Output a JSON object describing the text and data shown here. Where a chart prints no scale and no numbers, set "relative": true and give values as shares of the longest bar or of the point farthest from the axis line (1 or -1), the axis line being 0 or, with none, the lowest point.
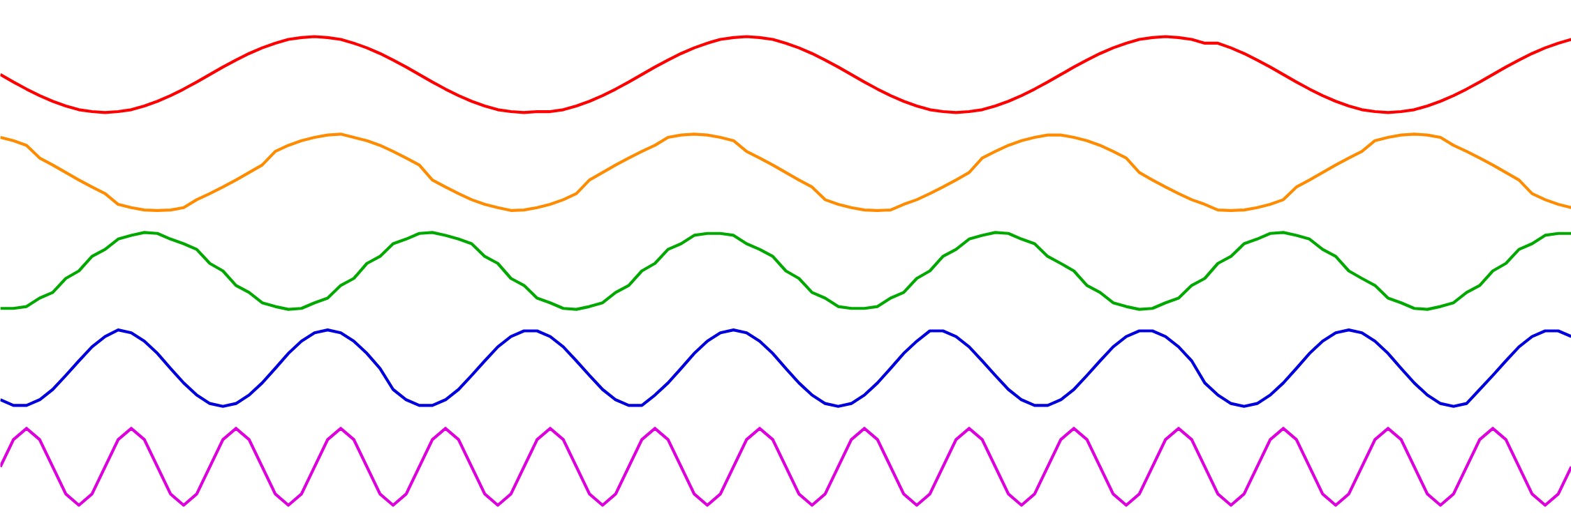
{
  "chart_data": {
    "type": "line",
    "relative": true,
    "tick_labels": false,
    "categories": [
      null,
      null,
      null,
      null,
      null,
      null,
      null,
      null,
      null,
      null,
      null,
      null,
      null,
      null,
      null,
      null,
      null,
      null,
      null,
      null,
      null,
      null,
      null,
      null,
      null,
      null,
      null,
      null,
      null,
      null,
      null,
      null,
      null,
      null,
      null,
      null,
      null,
      null,
      null,
      null,
      null,
      null,
      null,
      null,
      null,
      null,
      null,
      null,
      null,
      null,
      null,
      null,
      null,
      null,
      null,
      null,
      null,
      null,
      null,
      null,
      null,
      null,
      null,
      null,
      null,
      null,
      null,
      null,
      null,
      null,
      null,
      null,
      null,
      null,
      null,
      null,
      null,
      null,
      null,
      null,
      null,
      null,
      null,
      null,
      null,
      null,
      null,
      null,
      null,
      null,
      null,
      null,
      null,
      null,
      null,
      null,
      null,
      null,
      null,
      null,
      null,
      null,
      null,
      null,
      null,
      null,
      null,
      null,
      null,
      null,
      null,
      null,
      null,
      null,
      null,
      null,
      null,
      null,
      null,
      null,
      null
    ],
    "series": [
      {
        "color": "#ff0000",
        "values": [
          0.919,
          0.903,
          0.888,
          0.874,
          0.862,
          0.852,
          0.844,
          0.84,
          0.838,
          0.84,
          0.844,
          0.852,
          0.862,
          0.874,
          0.888,
          0.903,
          0.919,
          0.935,
          0.95,
          0.964,
          0.976,
          0.986,
          0.994,
          0.998,
          1.0,
          0.998,
          0.994,
          0.986,
          0.976,
          0.964,
          0.95,
          0.935,
          0.919,
          0.903,
          0.888,
          0.874,
          0.862,
          0.852,
          0.844,
          0.84,
          0.838,
          0.84,
          0.84,
          0.844,
          0.852,
          0.862,
          0.874,
          0.888,
          0.903,
          0.919,
          0.935,
          0.95,
          0.964,
          0.976,
          0.986,
          0.994,
          0.998,
          1.0,
          0.998,
          0.994,
          0.986,
          0.976,
          0.964,
          0.95,
          0.935,
          0.919,
          0.903,
          0.888,
          0.874,
          0.862,
          0.852,
          0.844,
          0.84,
          0.838,
          0.84,
          0.844,
          0.852,
          0.862,
          0.874,
          0.888,
          0.903,
          0.919,
          0.935,
          0.95,
          0.964,
          0.976,
          0.986,
          0.994,
          0.998,
          1.0,
          0.998,
          0.994,
          0.986,
          0.986,
          0.976,
          0.964,
          0.95,
          0.935,
          0.919,
          0.903,
          0.888,
          0.874,
          0.862,
          0.852,
          0.844,
          0.84,
          0.838,
          0.84,
          0.844,
          0.852,
          0.862,
          0.874,
          0.888,
          0.903,
          0.919,
          0.935,
          0.95,
          0.964,
          0.976,
          0.986,
          0.994
        ]
      },
      {
        "color": "#ff8c00",
        "values": [
          0.785,
          0.778,
          0.768,
          0.741,
          0.726,
          0.71,
          0.694,
          0.679,
          0.665,
          0.642,
          0.635,
          0.63,
          0.629,
          0.63,
          0.635,
          0.652,
          0.665,
          0.679,
          0.694,
          0.71,
          0.726,
          0.755,
          0.768,
          0.778,
          0.785,
          0.79,
          0.792,
          0.785,
          0.778,
          0.768,
          0.755,
          0.741,
          0.726,
          0.694,
          0.679,
          0.665,
          0.652,
          0.642,
          0.635,
          0.629,
          0.63,
          0.635,
          0.642,
          0.652,
          0.665,
          0.694,
          0.71,
          0.726,
          0.741,
          0.755,
          0.768,
          0.785,
          0.79,
          0.792,
          0.79,
          0.785,
          0.778,
          0.755,
          0.741,
          0.726,
          0.71,
          0.694,
          0.679,
          0.652,
          0.642,
          0.635,
          0.63,
          0.629,
          0.63,
          0.642,
          0.652,
          0.665,
          0.679,
          0.694,
          0.71,
          0.741,
          0.755,
          0.768,
          0.778,
          0.785,
          0.79,
          0.79,
          0.785,
          0.778,
          0.768,
          0.755,
          0.741,
          0.71,
          0.694,
          0.679,
          0.665,
          0.652,
          0.642,
          0.63,
          0.629,
          0.63,
          0.635,
          0.642,
          0.652,
          0.679,
          0.694,
          0.71,
          0.726,
          0.741,
          0.755,
          0.778,
          0.785,
          0.79,
          0.792,
          0.79,
          0.785,
          0.768,
          0.755,
          0.741,
          0.726,
          0.71,
          0.694,
          0.665,
          0.652,
          0.642,
          0.635
        ]
      },
      {
        "color": "#00a800",
        "values": [
          0.42,
          0.42,
          0.424,
          0.442,
          0.454,
          0.484,
          0.5,
          0.531,
          0.546,
          0.568,
          0.576,
          0.582,
          0.58,
          0.568,
          0.558,
          0.546,
          0.516,
          0.5,
          0.469,
          0.454,
          0.432,
          0.424,
          0.418,
          0.42,
          0.432,
          0.442,
          0.469,
          0.484,
          0.516,
          0.531,
          0.558,
          0.568,
          0.58,
          0.582,
          0.576,
          0.568,
          0.558,
          0.531,
          0.516,
          0.484,
          0.469,
          0.442,
          0.432,
          0.42,
          0.418,
          0.424,
          0.432,
          0.454,
          0.469,
          0.5,
          0.516,
          0.546,
          0.558,
          0.576,
          0.58,
          0.58,
          0.576,
          0.558,
          0.546,
          0.531,
          0.5,
          0.484,
          0.454,
          0.442,
          0.424,
          0.42,
          0.42,
          0.424,
          0.442,
          0.454,
          0.484,
          0.5,
          0.531,
          0.546,
          0.568,
          0.576,
          0.582,
          0.58,
          0.568,
          0.558,
          0.531,
          0.516,
          0.5,
          0.469,
          0.454,
          0.432,
          0.424,
          0.418,
          0.42,
          0.432,
          0.442,
          0.469,
          0.484,
          0.516,
          0.531,
          0.558,
          0.568,
          0.58,
          0.582,
          0.576,
          0.568,
          0.546,
          0.531,
          0.5,
          0.484,
          0.469,
          0.442,
          0.432,
          0.42,
          0.418,
          0.424,
          0.432,
          0.454,
          0.469,
          0.5,
          0.516,
          0.546,
          0.558,
          0.576,
          0.58,
          0.58
        ]
      },
      {
        "color": "#0000dd",
        "values": [
          0.225,
          0.213,
          0.213,
          0.225,
          0.247,
          0.277,
          0.308,
          0.338,
          0.36,
          0.374,
          0.368,
          0.35,
          0.324,
          0.292,
          0.261,
          0.235,
          0.217,
          0.211,
          0.217,
          0.235,
          0.261,
          0.292,
          0.324,
          0.35,
          0.368,
          0.374,
          0.368,
          0.35,
          0.324,
          0.292,
          0.247,
          0.225,
          0.213,
          0.213,
          0.225,
          0.247,
          0.277,
          0.308,
          0.338,
          0.36,
          0.372,
          0.372,
          0.36,
          0.338,
          0.308,
          0.277,
          0.247,
          0.225,
          0.213,
          0.213,
          0.235,
          0.261,
          0.292,
          0.324,
          0.35,
          0.368,
          0.374,
          0.368,
          0.35,
          0.324,
          0.292,
          0.261,
          0.235,
          0.217,
          0.211,
          0.217,
          0.235,
          0.261,
          0.292,
          0.324,
          0.35,
          0.372,
          0.372,
          0.36,
          0.338,
          0.308,
          0.277,
          0.247,
          0.225,
          0.213,
          0.213,
          0.225,
          0.247,
          0.277,
          0.308,
          0.338,
          0.36,
          0.372,
          0.372,
          0.36,
          0.338,
          0.308,
          0.261,
          0.235,
          0.217,
          0.211,
          0.217,
          0.235,
          0.261,
          0.292,
          0.324,
          0.35,
          0.368,
          0.374,
          0.368,
          0.35,
          0.324,
          0.292,
          0.261,
          0.235,
          0.217,
          0.211,
          0.217,
          0.247,
          0.277,
          0.308,
          0.338,
          0.36,
          0.372,
          0.372,
          0.36
        ]
      },
      {
        "color": "#dd00dd",
        "values": [
          0.082,
          0.14,
          0.164,
          0.14,
          0.082,
          0.024,
          0,
          0.024,
          0.082,
          0.14,
          0.164,
          0.14,
          0.082,
          0.024,
          0,
          0.024,
          0.082,
          0.14,
          0.164,
          0.14,
          0.082,
          0.024,
          0,
          0.024,
          0.082,
          0.14,
          0.164,
          0.14,
          0.082,
          0.024,
          0,
          0.024,
          0.082,
          0.14,
          0.164,
          0.14,
          0.082,
          0.024,
          0,
          0.024,
          0.082,
          0.14,
          0.164,
          0.14,
          0.082,
          0.024,
          0,
          0.024,
          0.082,
          0.14,
          0.164,
          0.14,
          0.082,
          0.024,
          0,
          0.024,
          0.082,
          0.14,
          0.164,
          0.14,
          0.082,
          0.024,
          0,
          0.024,
          0.082,
          0.14,
          0.164,
          0.14,
          0.082,
          0.024,
          0,
          0.024,
          0.082,
          0.14,
          0.164,
          0.14,
          0.082,
          0.024,
          0,
          0.024,
          0.082,
          0.14,
          0.164,
          0.14,
          0.082,
          0.024,
          0,
          0.024,
          0.082,
          0.14,
          0.164,
          0.14,
          0.082,
          0.024,
          0,
          0.024,
          0.082,
          0.14,
          0.164,
          0.14,
          0.082,
          0.024,
          0,
          0.024,
          0.082,
          0.14,
          0.164,
          0.14,
          0.082,
          0.024,
          0,
          0.024,
          0.082,
          0.14,
          0.164,
          0.14,
          0.082,
          0.024,
          0,
          0.024,
          0.082
        ]
      }
    ]
  }
}
